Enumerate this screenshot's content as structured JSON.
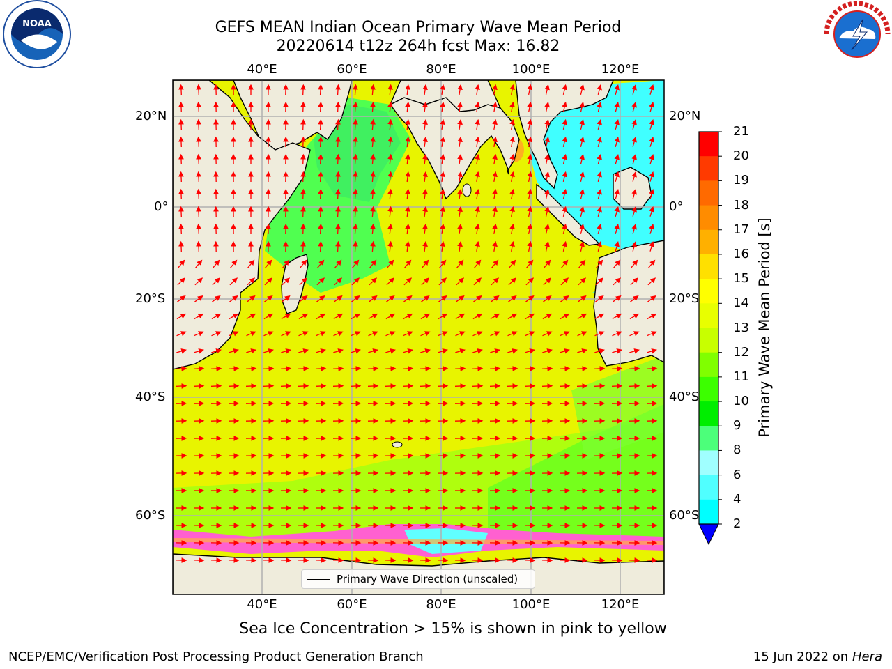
{
  "title_line1": "GEFS MEAN Indian Ocean Primary Wave Mean Period",
  "title_line2": "20220614 t12z 264h fcst   Max: 16.82",
  "map": {
    "lon_labels": [
      "40°E",
      "60°E",
      "80°E",
      "100°E",
      "120°E"
    ],
    "lat_labels": [
      "20°N",
      "0°",
      "20°S",
      "40°S",
      "60°S"
    ],
    "lon_range": [
      20,
      130
    ],
    "lat_range": [
      -72,
      28
    ]
  },
  "colorbar": {
    "title": "Primary Wave Mean Period [s]",
    "ticks": [
      "21",
      "20",
      "19",
      "18",
      "17",
      "16",
      "15",
      "14",
      "13",
      "12",
      "11",
      "10",
      "9",
      "8",
      "6",
      "4",
      "2"
    ],
    "colors": [
      "#ff0000",
      "#ff3a00",
      "#ff6a00",
      "#ff8c00",
      "#ffb000",
      "#ffe000",
      "#ffff00",
      "#e8ff00",
      "#c8ff00",
      "#80ff00",
      "#3cff00",
      "#00ee00",
      "#4cff7a",
      "#a0ffff",
      "#50ffff",
      "#00ffff",
      "#00a8ff"
    ],
    "extend_color": "#0000ff"
  },
  "legend": {
    "label": "Primary Wave Direction (unscaled)"
  },
  "caption": "Sea Ice Concentration > 15% is shown in pink to yellow",
  "footer": {
    "left": "NCEP/EMC/Verification Post Processing Product Generation Branch",
    "right_date": "15 Jun 2022 on",
    "right_host": "Hera"
  },
  "logos": {
    "left": {
      "icon": "noaa-logo",
      "text": "NOAA"
    },
    "right": {
      "icon": "nws-logo",
      "text": "NATIONAL WEATHER SERVICE"
    }
  },
  "colors": {
    "land": "#efecdc",
    "ocean_main": "#e6f400",
    "arrow": "#ff0000",
    "grid": "#b0b0b0"
  }
}
